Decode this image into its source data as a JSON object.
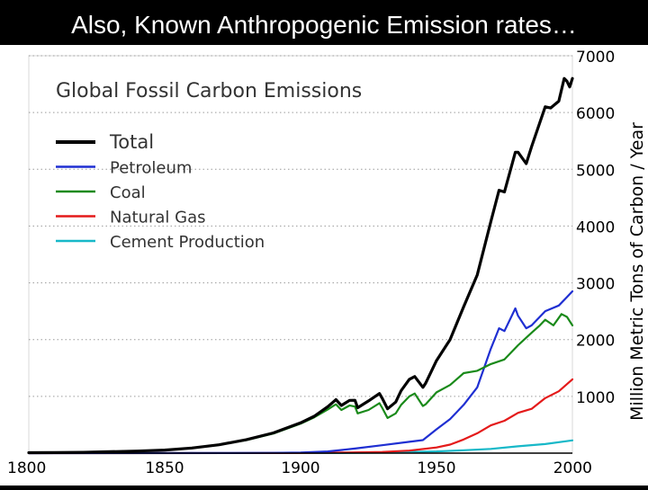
{
  "slide": {
    "title": "Also, Known Anthropogenic Emission rates…"
  },
  "chart_data": {
    "type": "line",
    "title": "Global Fossil Carbon Emissions",
    "xlabel": "",
    "ylabel": "Million Metric Tons of Carbon / Year",
    "xlim": [
      1800,
      2000
    ],
    "ylim": [
      0,
      7000
    ],
    "x_ticks": [
      1800,
      1850,
      1900,
      1950,
      2000
    ],
    "y_ticks": [
      1000,
      2000,
      3000,
      4000,
      5000,
      6000,
      7000
    ],
    "grid": "horizontal dotted",
    "legend": "top-left",
    "series": [
      {
        "name": "Total",
        "color": "#000000",
        "points": [
          [
            1800,
            8
          ],
          [
            1810,
            10
          ],
          [
            1820,
            14
          ],
          [
            1830,
            25
          ],
          [
            1840,
            36
          ],
          [
            1850,
            54
          ],
          [
            1860,
            91
          ],
          [
            1870,
            147
          ],
          [
            1880,
            236
          ],
          [
            1890,
            356
          ],
          [
            1900,
            534
          ],
          [
            1905,
            650
          ],
          [
            1910,
            819
          ],
          [
            1912,
            900
          ],
          [
            1913,
            943
          ],
          [
            1915,
            840
          ],
          [
            1918,
            930
          ],
          [
            1920,
            932
          ],
          [
            1921,
            800
          ],
          [
            1925,
            920
          ],
          [
            1929,
            1050
          ],
          [
            1930,
            970
          ],
          [
            1932,
            780
          ],
          [
            1935,
            900
          ],
          [
            1937,
            1100
          ],
          [
            1940,
            1300
          ],
          [
            1942,
            1350
          ],
          [
            1945,
            1160
          ],
          [
            1946,
            1230
          ],
          [
            1950,
            1630
          ],
          [
            1955,
            2000
          ],
          [
            1960,
            2580
          ],
          [
            1965,
            3140
          ],
          [
            1970,
            4080
          ],
          [
            1973,
            4630
          ],
          [
            1975,
            4600
          ],
          [
            1979,
            5300
          ],
          [
            1980,
            5300
          ],
          [
            1983,
            5100
          ],
          [
            1985,
            5400
          ],
          [
            1990,
            6100
          ],
          [
            1992,
            6080
          ],
          [
            1995,
            6200
          ],
          [
            1997,
            6600
          ],
          [
            1998,
            6550
          ],
          [
            1999,
            6450
          ],
          [
            2000,
            6600
          ]
        ]
      },
      {
        "name": "Petroleum",
        "color": "#1f2fd2",
        "points": [
          [
            1800,
            0
          ],
          [
            1870,
            1
          ],
          [
            1890,
            5
          ],
          [
            1900,
            10
          ],
          [
            1910,
            30
          ],
          [
            1920,
            80
          ],
          [
            1930,
            140
          ],
          [
            1940,
            200
          ],
          [
            1945,
            230
          ],
          [
            1950,
            420
          ],
          [
            1955,
            600
          ],
          [
            1960,
            850
          ],
          [
            1965,
            1160
          ],
          [
            1970,
            1840
          ],
          [
            1973,
            2200
          ],
          [
            1975,
            2150
          ],
          [
            1979,
            2550
          ],
          [
            1980,
            2420
          ],
          [
            1983,
            2200
          ],
          [
            1985,
            2250
          ],
          [
            1990,
            2500
          ],
          [
            1995,
            2600
          ],
          [
            1998,
            2750
          ],
          [
            2000,
            2850
          ]
        ]
      },
      {
        "name": "Coal",
        "color": "#1a8a1a",
        "points": [
          [
            1800,
            8
          ],
          [
            1810,
            10
          ],
          [
            1820,
            14
          ],
          [
            1830,
            25
          ],
          [
            1840,
            36
          ],
          [
            1850,
            54
          ],
          [
            1860,
            90
          ],
          [
            1870,
            145
          ],
          [
            1880,
            230
          ],
          [
            1890,
            345
          ],
          [
            1900,
            520
          ],
          [
            1905,
            630
          ],
          [
            1910,
            770
          ],
          [
            1912,
            830
          ],
          [
            1913,
            860
          ],
          [
            1915,
            760
          ],
          [
            1918,
            840
          ],
          [
            1920,
            820
          ],
          [
            1921,
            700
          ],
          [
            1925,
            760
          ],
          [
            1929,
            880
          ],
          [
            1930,
            800
          ],
          [
            1932,
            620
          ],
          [
            1935,
            700
          ],
          [
            1937,
            850
          ],
          [
            1940,
            1000
          ],
          [
            1942,
            1050
          ],
          [
            1945,
            830
          ],
          [
            1946,
            860
          ],
          [
            1950,
            1070
          ],
          [
            1955,
            1200
          ],
          [
            1960,
            1410
          ],
          [
            1965,
            1450
          ],
          [
            1970,
            1570
          ],
          [
            1975,
            1650
          ],
          [
            1980,
            1900
          ],
          [
            1985,
            2120
          ],
          [
            1988,
            2250
          ],
          [
            1990,
            2350
          ],
          [
            1993,
            2250
          ],
          [
            1996,
            2450
          ],
          [
            1998,
            2400
          ],
          [
            2000,
            2250
          ]
        ]
      },
      {
        "name": "Natural Gas",
        "color": "#e41a1a",
        "points": [
          [
            1800,
            0
          ],
          [
            1890,
            1
          ],
          [
            1900,
            3
          ],
          [
            1910,
            8
          ],
          [
            1920,
            12
          ],
          [
            1930,
            20
          ],
          [
            1940,
            45
          ],
          [
            1950,
            100
          ],
          [
            1955,
            150
          ],
          [
            1960,
            240
          ],
          [
            1965,
            350
          ],
          [
            1970,
            490
          ],
          [
            1975,
            570
          ],
          [
            1980,
            710
          ],
          [
            1985,
            780
          ],
          [
            1990,
            970
          ],
          [
            1995,
            1090
          ],
          [
            2000,
            1300
          ]
        ]
      },
      {
        "name": "Cement Production",
        "color": "#17b8c8",
        "points": [
          [
            1800,
            0
          ],
          [
            1900,
            1
          ],
          [
            1920,
            5
          ],
          [
            1930,
            10
          ],
          [
            1940,
            20
          ],
          [
            1950,
            30
          ],
          [
            1960,
            50
          ],
          [
            1970,
            75
          ],
          [
            1980,
            120
          ],
          [
            1990,
            160
          ],
          [
            2000,
            225
          ]
        ]
      }
    ]
  }
}
